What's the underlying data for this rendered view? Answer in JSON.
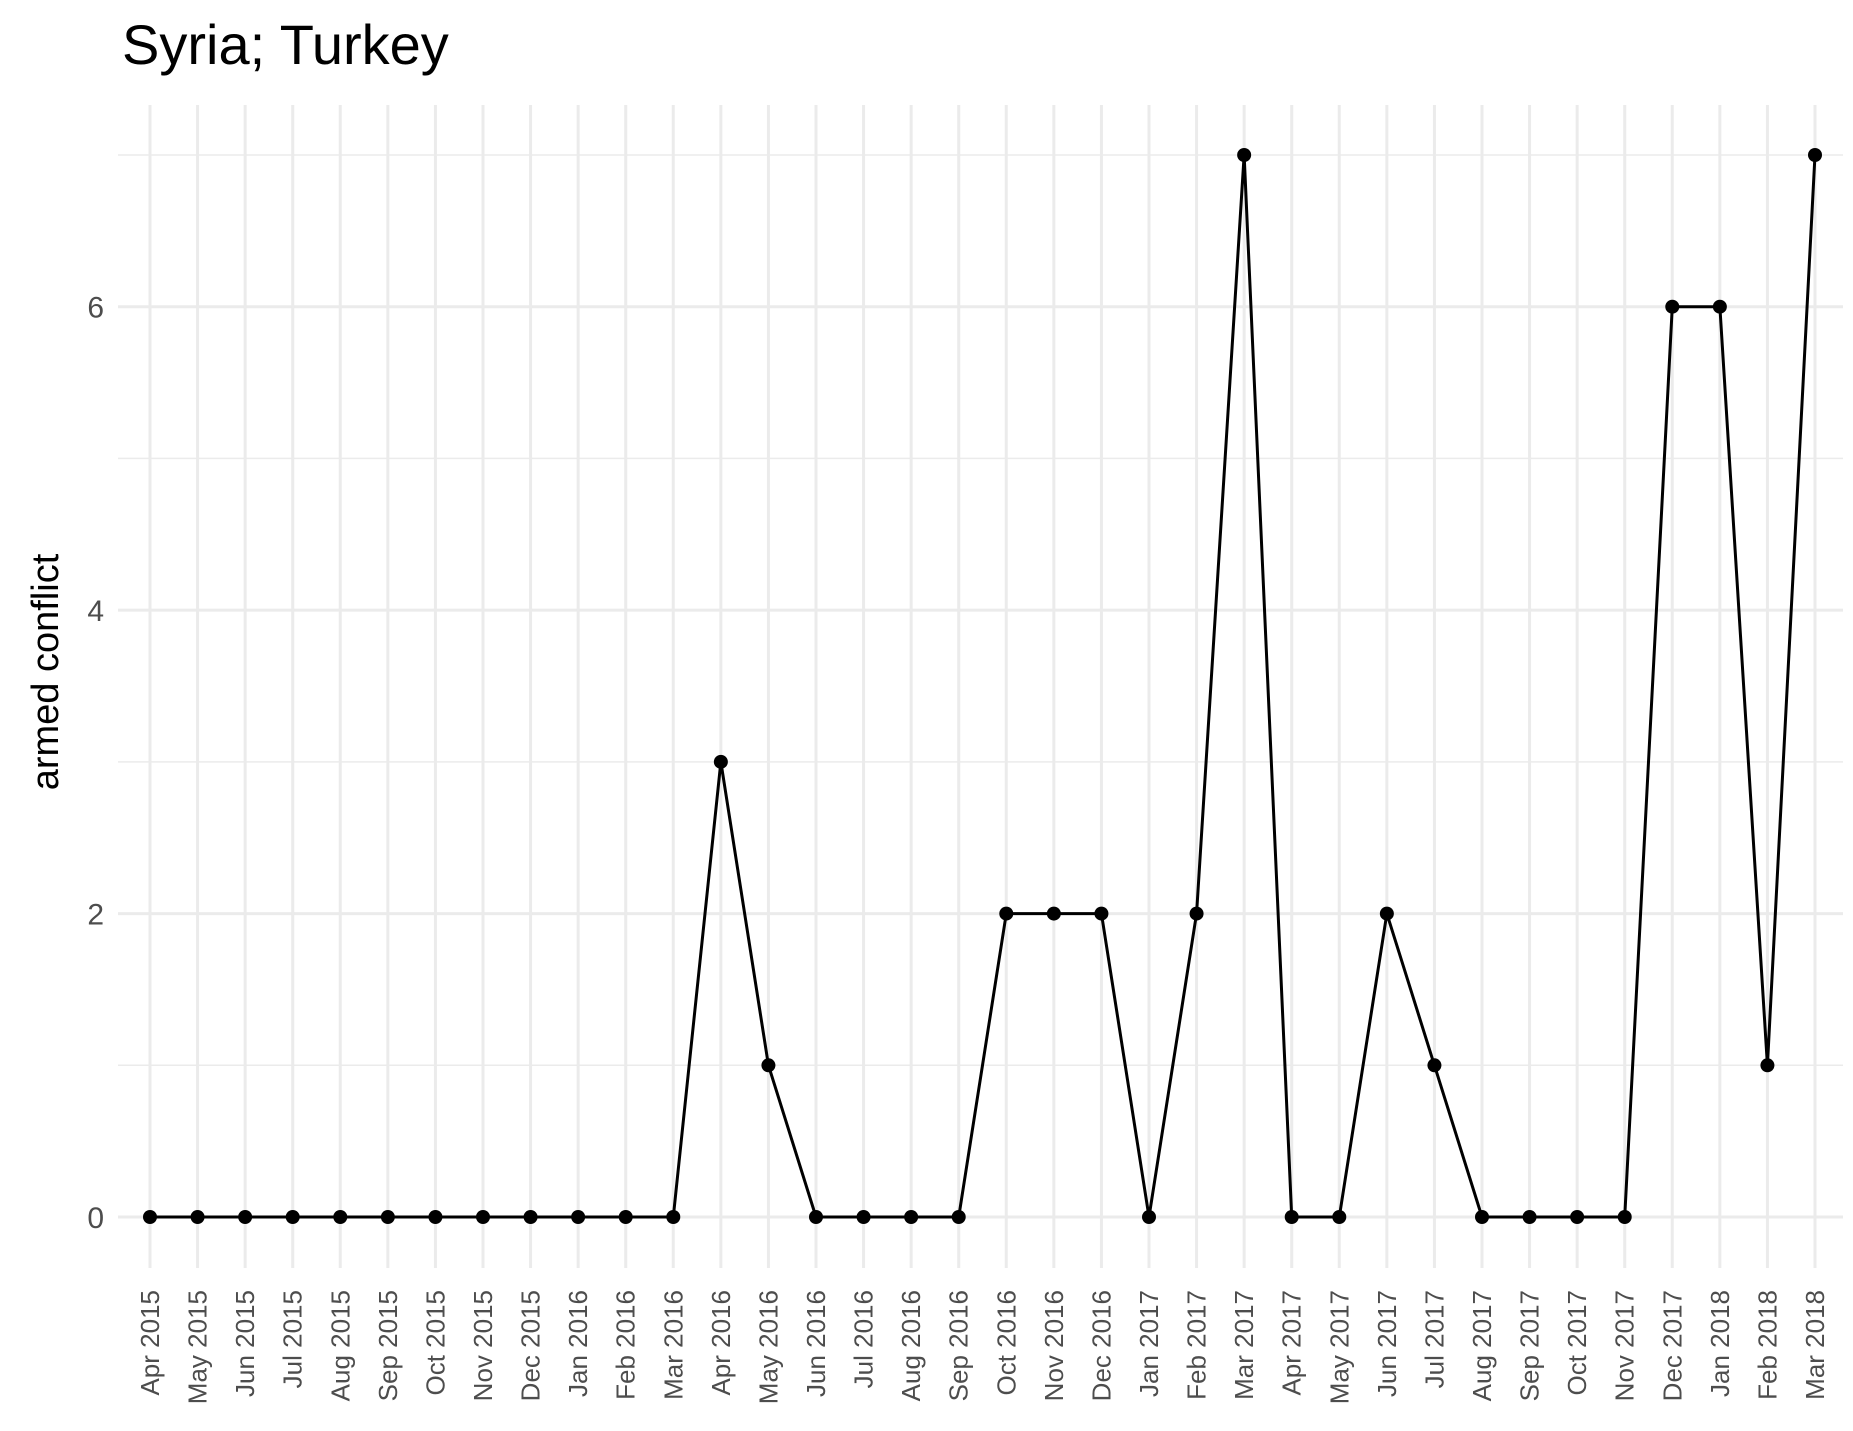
{
  "chart_data": {
    "type": "line",
    "title": "Syria; Turkey",
    "xlabel": "",
    "ylabel": "armed conflict",
    "ylim": [
      0,
      7
    ],
    "yticks": [
      0,
      2,
      4,
      6
    ],
    "grid": true,
    "categories": [
      "Apr 2015",
      "May 2015",
      "Jun 2015",
      "Jul 2015",
      "Aug 2015",
      "Sep 2015",
      "Oct 2015",
      "Nov 2015",
      "Dec 2015",
      "Jan 2016",
      "Feb 2016",
      "Mar 2016",
      "Apr 2016",
      "May 2016",
      "Jun 2016",
      "Jul 2016",
      "Aug 2016",
      "Sep 2016",
      "Oct 2016",
      "Nov 2016",
      "Dec 2016",
      "Jan 2017",
      "Feb 2017",
      "Mar 2017",
      "Apr 2017",
      "May 2017",
      "Jun 2017",
      "Jul 2017",
      "Aug 2017",
      "Sep 2017",
      "Oct 2017",
      "Nov 2017",
      "Dec 2017",
      "Jan 2018",
      "Feb 2018",
      "Mar 2018"
    ],
    "series": [
      {
        "values": [
          0,
          0,
          0,
          0,
          0,
          0,
          0,
          0,
          0,
          0,
          0,
          0,
          3,
          1,
          0,
          0,
          0,
          0,
          2,
          2,
          2,
          0,
          2,
          7,
          0,
          0,
          2,
          1,
          0,
          0,
          0,
          0,
          6,
          6,
          1,
          7
        ]
      }
    ]
  }
}
